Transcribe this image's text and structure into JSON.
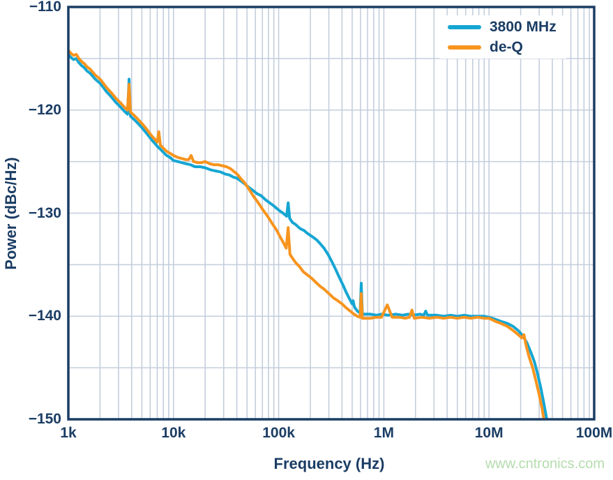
{
  "watermark": "www.cntronics.com",
  "colors": {
    "axis_text": "#1b3d64",
    "frame": "#1b3d64",
    "grid": "#c4cedc",
    "series_blue": "#15a6d3",
    "series_orange": "#f7941e",
    "watermark_green": "#b5dcae",
    "background": "#ffffff"
  },
  "chart_data": {
    "type": "line",
    "x_scale": "log",
    "y_scale": "linear",
    "xlabel": "Frequency (Hz)",
    "ylabel": "Power (dBc/Hz)",
    "xlim": [
      1000,
      100000000
    ],
    "ylim": [
      -150,
      -110
    ],
    "grid": "on",
    "y_minor_step_db": 5,
    "legend_position": "top-right",
    "x_ticks": [
      {
        "label": "1k",
        "value": 1000
      },
      {
        "label": "10k",
        "value": 10000
      },
      {
        "label": "100k",
        "value": 100000
      },
      {
        "label": "1M",
        "value": 1000000
      },
      {
        "label": "10M",
        "value": 10000000
      },
      {
        "label": "100M",
        "value": 100000000
      }
    ],
    "y_ticks": [
      {
        "label": "−110",
        "value": -110
      },
      {
        "label": "−120",
        "value": -120
      },
      {
        "label": "−130",
        "value": -130
      },
      {
        "label": "−140",
        "value": -140
      },
      {
        "label": "−150",
        "value": -150
      }
    ],
    "series": [
      {
        "name": "3800 MHz",
        "color": "#15a6d3",
        "points": [
          [
            1000,
            -114.6
          ],
          [
            1060,
            -114.9
          ],
          [
            1120,
            -115.1
          ],
          [
            1190,
            -115.0
          ],
          [
            1260,
            -115.4
          ],
          [
            1340,
            -115.7
          ],
          [
            1420,
            -115.9
          ],
          [
            1500,
            -116.2
          ],
          [
            1600,
            -116.4
          ],
          [
            1700,
            -116.7
          ],
          [
            1800,
            -117.0
          ],
          [
            1900,
            -117.2
          ],
          [
            2000,
            -117.4
          ],
          [
            2150,
            -117.8
          ],
          [
            2300,
            -118.2
          ],
          [
            2450,
            -118.5
          ],
          [
            2600,
            -118.8
          ],
          [
            2800,
            -119.2
          ],
          [
            3000,
            -119.5
          ],
          [
            3200,
            -119.8
          ],
          [
            3400,
            -120.1
          ],
          [
            3650,
            -120.4
          ],
          [
            3780,
            -117.0
          ],
          [
            3900,
            -120.6
          ],
          [
            4200,
            -120.9
          ],
          [
            4500,
            -121.2
          ],
          [
            4800,
            -121.5
          ],
          [
            5100,
            -121.8
          ],
          [
            5400,
            -122.1
          ],
          [
            5800,
            -122.5
          ],
          [
            6200,
            -122.9
          ],
          [
            6600,
            -123.2
          ],
          [
            7000,
            -123.5
          ],
          [
            7500,
            -123.8
          ],
          [
            8000,
            -124.1
          ],
          [
            8600,
            -124.4
          ],
          [
            9300,
            -124.6
          ],
          [
            10000,
            -124.9
          ],
          [
            11000,
            -125.0
          ],
          [
            12000,
            -125.1
          ],
          [
            13000,
            -125.2
          ],
          [
            14500,
            -125.3
          ],
          [
            16000,
            -125.5
          ],
          [
            18000,
            -125.5
          ],
          [
            20000,
            -125.6
          ],
          [
            22500,
            -125.8
          ],
          [
            25000,
            -125.9
          ],
          [
            28000,
            -126.0
          ],
          [
            31000,
            -126.2
          ],
          [
            34000,
            -126.3
          ],
          [
            37000,
            -126.5
          ],
          [
            40000,
            -126.6
          ],
          [
            44000,
            -126.9
          ],
          [
            48000,
            -127.2
          ],
          [
            52000,
            -127.5
          ],
          [
            57000,
            -127.8
          ],
          [
            62000,
            -128.1
          ],
          [
            68000,
            -128.3
          ],
          [
            75000,
            -128.7
          ],
          [
            82000,
            -129.0
          ],
          [
            90000,
            -129.3
          ],
          [
            100000,
            -129.7
          ],
          [
            110000,
            -130.0
          ],
          [
            119000,
            -130.3
          ],
          [
            123000,
            -129.0
          ],
          [
            127000,
            -130.5
          ],
          [
            135000,
            -130.9
          ],
          [
            145000,
            -131.1
          ],
          [
            160000,
            -131.5
          ],
          [
            175000,
            -131.7
          ],
          [
            190000,
            -132.0
          ],
          [
            210000,
            -132.3
          ],
          [
            230000,
            -132.6
          ],
          [
            250000,
            -133.0
          ],
          [
            270000,
            -133.4
          ],
          [
            295000,
            -134.0
          ],
          [
            320000,
            -134.7
          ],
          [
            350000,
            -135.5
          ],
          [
            380000,
            -136.3
          ],
          [
            410000,
            -137.0
          ],
          [
            440000,
            -137.7
          ],
          [
            470000,
            -138.3
          ],
          [
            500000,
            -138.8
          ],
          [
            510000,
            -138.5
          ],
          [
            525000,
            -139.1
          ],
          [
            560000,
            -139.5
          ],
          [
            595000,
            -139.7
          ],
          [
            610000,
            -136.8
          ],
          [
            625000,
            -139.8
          ],
          [
            680000,
            -139.8
          ],
          [
            750000,
            -139.8
          ],
          [
            850000,
            -139.9
          ],
          [
            950000,
            -139.8
          ],
          [
            1100000,
            -139.9
          ],
          [
            1300000,
            -139.8
          ],
          [
            1500000,
            -139.9
          ],
          [
            1700000,
            -139.8
          ],
          [
            1900000,
            -139.9
          ],
          [
            2200000,
            -139.8
          ],
          [
            2400000,
            -139.9
          ],
          [
            2500000,
            -139.5
          ],
          [
            2600000,
            -139.9
          ],
          [
            3200000,
            -139.9
          ],
          [
            3700000,
            -140.0
          ],
          [
            4300000,
            -139.9
          ],
          [
            5000000,
            -140.0
          ],
          [
            5800000,
            -139.9
          ],
          [
            6700000,
            -140.0
          ],
          [
            7800000,
            -140.0
          ],
          [
            9000000,
            -140.0
          ],
          [
            10000000,
            -140.1
          ],
          [
            11500000,
            -140.3
          ],
          [
            13000000,
            -140.5
          ],
          [
            15000000,
            -140.7
          ],
          [
            17000000,
            -141.0
          ],
          [
            19000000,
            -141.4
          ],
          [
            21000000,
            -141.9
          ],
          [
            23000000,
            -142.6
          ],
          [
            25000000,
            -143.5
          ],
          [
            27000000,
            -144.4
          ],
          [
            29000000,
            -145.6
          ],
          [
            31000000,
            -146.9
          ],
          [
            33000000,
            -148.3
          ],
          [
            35000000,
            -149.7
          ],
          [
            36200000,
            -150.5
          ]
        ]
      },
      {
        "name": "de-Q",
        "color": "#f7941e",
        "points": [
          [
            1000,
            -114.2
          ],
          [
            1060,
            -114.5
          ],
          [
            1120,
            -114.7
          ],
          [
            1190,
            -114.6
          ],
          [
            1260,
            -115.0
          ],
          [
            1340,
            -115.3
          ],
          [
            1420,
            -115.5
          ],
          [
            1500,
            -115.8
          ],
          [
            1600,
            -116.0
          ],
          [
            1700,
            -116.3
          ],
          [
            1800,
            -116.6
          ],
          [
            1900,
            -116.8
          ],
          [
            2000,
            -117.0
          ],
          [
            2150,
            -117.4
          ],
          [
            2300,
            -117.8
          ],
          [
            2450,
            -118.1
          ],
          [
            2600,
            -118.4
          ],
          [
            2800,
            -118.8
          ],
          [
            3000,
            -119.1
          ],
          [
            3200,
            -119.4
          ],
          [
            3400,
            -119.7
          ],
          [
            3650,
            -120.0
          ],
          [
            3780,
            -117.5
          ],
          [
            3900,
            -120.2
          ],
          [
            4200,
            -120.5
          ],
          [
            4500,
            -120.8
          ],
          [
            4800,
            -121.1
          ],
          [
            5100,
            -121.4
          ],
          [
            5400,
            -121.7
          ],
          [
            5800,
            -122.1
          ],
          [
            6200,
            -122.5
          ],
          [
            6600,
            -122.8
          ],
          [
            7000,
            -123.1
          ],
          [
            7250,
            -122.1
          ],
          [
            7500,
            -123.4
          ],
          [
            8000,
            -123.7
          ],
          [
            8600,
            -124.0
          ],
          [
            9300,
            -124.2
          ],
          [
            10000,
            -124.4
          ],
          [
            11000,
            -124.6
          ],
          [
            12000,
            -124.7
          ],
          [
            13000,
            -124.8
          ],
          [
            14000,
            -124.8
          ],
          [
            14700,
            -124.4
          ],
          [
            15500,
            -125.0
          ],
          [
            17000,
            -125.1
          ],
          [
            18500,
            -125.1
          ],
          [
            20000,
            -125.0
          ],
          [
            22000,
            -125.2
          ],
          [
            24000,
            -125.3
          ],
          [
            26500,
            -125.3
          ],
          [
            29000,
            -125.4
          ],
          [
            32000,
            -125.5
          ],
          [
            35000,
            -125.7
          ],
          [
            38000,
            -126.0
          ],
          [
            41000,
            -126.3
          ],
          [
            44000,
            -126.7
          ],
          [
            47000,
            -127.0
          ],
          [
            50000,
            -127.4
          ],
          [
            54000,
            -127.9
          ],
          [
            58000,
            -128.4
          ],
          [
            62000,
            -128.8
          ],
          [
            66000,
            -129.2
          ],
          [
            71000,
            -129.7
          ],
          [
            76000,
            -130.1
          ],
          [
            82000,
            -130.6
          ],
          [
            88000,
            -131.1
          ],
          [
            95000,
            -131.6
          ],
          [
            102000,
            -132.2
          ],
          [
            110000,
            -132.8
          ],
          [
            118000,
            -133.4
          ],
          [
            123000,
            -131.4
          ],
          [
            128000,
            -134.0
          ],
          [
            136000,
            -134.4
          ],
          [
            145000,
            -134.8
          ],
          [
            158000,
            -135.2
          ],
          [
            172000,
            -135.7
          ],
          [
            188000,
            -136.0
          ],
          [
            205000,
            -136.3
          ],
          [
            225000,
            -136.7
          ],
          [
            248000,
            -137.1
          ],
          [
            272000,
            -137.4
          ],
          [
            300000,
            -137.8
          ],
          [
            330000,
            -138.2
          ],
          [
            365000,
            -138.5
          ],
          [
            400000,
            -138.8
          ],
          [
            440000,
            -139.2
          ],
          [
            480000,
            -139.5
          ],
          [
            520000,
            -139.8
          ],
          [
            560000,
            -140.0
          ],
          [
            595000,
            -140.1
          ],
          [
            610000,
            -137.8
          ],
          [
            625000,
            -140.2
          ],
          [
            680000,
            -140.2
          ],
          [
            750000,
            -140.2
          ],
          [
            850000,
            -140.1
          ],
          [
            950000,
            -140.1
          ],
          [
            1080000,
            -138.9
          ],
          [
            1200000,
            -140.1
          ],
          [
            1400000,
            -140.1
          ],
          [
            1600000,
            -140.2
          ],
          [
            1750000,
            -140.1
          ],
          [
            1850000,
            -139.4
          ],
          [
            1950000,
            -140.2
          ],
          [
            2300000,
            -140.1
          ],
          [
            2700000,
            -140.2
          ],
          [
            3200000,
            -140.1
          ],
          [
            3700000,
            -140.2
          ],
          [
            4300000,
            -140.1
          ],
          [
            5000000,
            -140.2
          ],
          [
            5800000,
            -140.1
          ],
          [
            6700000,
            -140.2
          ],
          [
            7800000,
            -140.1
          ],
          [
            9000000,
            -140.2
          ],
          [
            10000000,
            -140.2
          ],
          [
            11500000,
            -140.5
          ],
          [
            13000000,
            -140.7
          ],
          [
            15000000,
            -141.0
          ],
          [
            17000000,
            -141.4
          ],
          [
            19000000,
            -141.8
          ],
          [
            20500000,
            -142.1
          ],
          [
            21500000,
            -141.8
          ],
          [
            22500000,
            -142.8
          ],
          [
            24000000,
            -143.9
          ],
          [
            26000000,
            -145.0
          ],
          [
            28000000,
            -146.3
          ],
          [
            30000000,
            -147.6
          ],
          [
            32000000,
            -149.0
          ],
          [
            33800000,
            -150.5
          ]
        ]
      }
    ]
  }
}
